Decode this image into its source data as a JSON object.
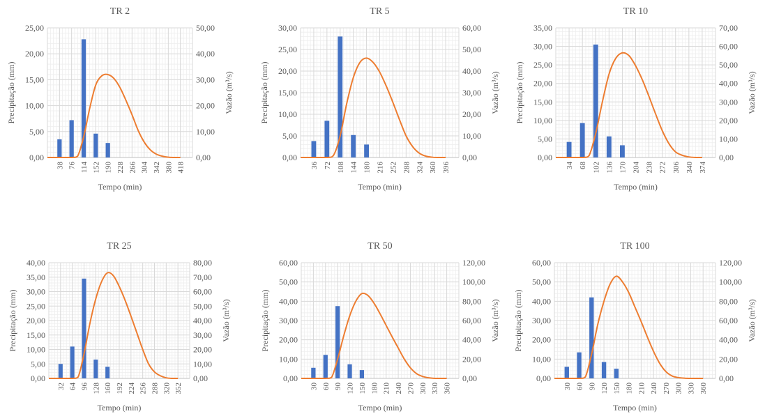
{
  "chart_data": [
    {
      "type": "bar+line",
      "title": "TR 2",
      "xlabel": "Tempo (min)",
      "ylabel": "Precipitação (mm)",
      "y2label": "Vazão (m³/s)",
      "ylim": [
        0,
        25
      ],
      "y2lim": [
        0,
        50
      ],
      "yticks": [
        "0,00",
        "5,00",
        "10,00",
        "15,00",
        "20,00",
        "25,00"
      ],
      "y2ticks": [
        "0,00",
        "10,00",
        "20,00",
        "30,00",
        "40,00",
        "50,00"
      ],
      "xticks": [
        "38",
        "76",
        "114",
        "152",
        "190",
        "228",
        "266",
        "304",
        "342",
        "380",
        "418"
      ],
      "bars": {
        "x": [
          38,
          76,
          114,
          152,
          190
        ],
        "values": [
          3.5,
          7.2,
          22.8,
          4.6,
          2.8
        ],
        "color": "#4472C4"
      },
      "line": {
        "x": [
          0,
          76,
          95,
          114,
          133,
          152,
          171,
          190,
          209,
          228,
          247,
          266,
          285,
          304,
          323,
          342,
          361,
          380,
          399,
          418
        ],
        "values": [
          0,
          0,
          0.5,
          8,
          19,
          28,
          31.5,
          32,
          30.5,
          27,
          22,
          16.5,
          10.5,
          6,
          3,
          1.3,
          0.5,
          0.1,
          0,
          0
        ],
        "color": "#ED7D31"
      }
    },
    {
      "type": "bar+line",
      "title": "TR 5",
      "xlabel": "Tempo (min)",
      "ylabel": "Precipitação (mm)",
      "y2label": "Vazão (m³/s)",
      "ylim": [
        0,
        30
      ],
      "y2lim": [
        0,
        60
      ],
      "yticks": [
        "0,00",
        "5,00",
        "10,00",
        "15,00",
        "20,00",
        "25,00",
        "30,00"
      ],
      "y2ticks": [
        "0,00",
        "10,00",
        "20,00",
        "30,00",
        "40,00",
        "50,00",
        "60,00"
      ],
      "xticks": [
        "36",
        "72",
        "108",
        "144",
        "180",
        "216",
        "252",
        "288",
        "324",
        "360",
        "396"
      ],
      "bars": {
        "x": [
          36,
          72,
          108,
          144,
          180
        ],
        "values": [
          3.8,
          8.5,
          28.0,
          5.2,
          3.0
        ],
        "color": "#4472C4"
      },
      "line": {
        "x": [
          0,
          72,
          90,
          108,
          126,
          144,
          162,
          180,
          198,
          216,
          234,
          252,
          270,
          288,
          306,
          324,
          342,
          360,
          378,
          396
        ],
        "values": [
          0,
          0,
          1,
          10,
          25,
          37,
          44,
          46,
          44,
          39.5,
          33,
          25.5,
          17.5,
          10,
          5,
          2,
          0.6,
          0.1,
          0,
          0
        ],
        "color": "#ED7D31"
      }
    },
    {
      "type": "bar+line",
      "title": "TR 10",
      "xlabel": "Tempo (min)",
      "ylabel": "Precipitação (mm)",
      "y2label": "Vazão (m³/s)",
      "ylim": [
        0,
        35
      ],
      "y2lim": [
        0,
        70
      ],
      "yticks": [
        "0,00",
        "5,00",
        "10,00",
        "15,00",
        "20,00",
        "25,00",
        "30,00",
        "35,00"
      ],
      "y2ticks": [
        "0,00",
        "10,00",
        "20,00",
        "30,00",
        "40,00",
        "50,00",
        "60,00",
        "70,00"
      ],
      "xticks": [
        "34",
        "68",
        "102",
        "136",
        "170",
        "204",
        "238",
        "272",
        "306",
        "340",
        "374"
      ],
      "bars": {
        "x": [
          34,
          68,
          102,
          136,
          170
        ],
        "values": [
          4.2,
          9.3,
          30.5,
          5.7,
          3.3
        ],
        "color": "#4472C4"
      },
      "line": {
        "x": [
          0,
          68,
          85,
          102,
          119,
          136,
          153,
          170,
          187,
          204,
          221,
          238,
          255,
          272,
          289,
          306,
          323,
          340,
          357,
          374
        ],
        "values": [
          0,
          0,
          1,
          13,
          30,
          45,
          53.5,
          56.5,
          55,
          49.5,
          42,
          33,
          23.5,
          14.5,
          7.5,
          3,
          1.2,
          0.3,
          0,
          0
        ],
        "color": "#ED7D31"
      }
    },
    {
      "type": "bar+line",
      "title": "TR 25",
      "xlabel": "Tempo (min)",
      "ylabel": "Precipitação (mm)",
      "y2label": "Vazão (m³/s)",
      "ylim": [
        0,
        40
      ],
      "y2lim": [
        0,
        80
      ],
      "yticks": [
        "0,00",
        "5,00",
        "10,00",
        "15,00",
        "20,00",
        "25,00",
        "30,00",
        "35,00",
        "40,00"
      ],
      "y2ticks": [
        "0,00",
        "10,00",
        "20,00",
        "30,00",
        "40,00",
        "50,00",
        "60,00",
        "70,00",
        "80,00"
      ],
      "xticks": [
        "32",
        "64",
        "96",
        "128",
        "160",
        "192",
        "224",
        "256",
        "288",
        "320",
        "352"
      ],
      "bars": {
        "x": [
          32,
          64,
          96,
          128,
          160
        ],
        "values": [
          5.0,
          11.0,
          34.5,
          6.5,
          4.0
        ],
        "color": "#4472C4"
      },
      "line": {
        "x": [
          0,
          64,
          80,
          96,
          112,
          128,
          144,
          160,
          176,
          192,
          208,
          224,
          240,
          256,
          272,
          288,
          304,
          320,
          336,
          352
        ],
        "values": [
          0,
          0,
          1,
          17,
          38,
          55,
          67,
          73,
          71,
          63.5,
          54,
          43,
          31.5,
          20,
          10,
          4.5,
          1.8,
          0.4,
          0,
          0
        ],
        "color": "#ED7D31"
      }
    },
    {
      "type": "bar+line",
      "title": "TR 50",
      "xlabel": "Tempo (min)",
      "ylabel": "Precipitação (mm)",
      "y2label": "Vazão (m³/s)",
      "ylim": [
        0,
        60
      ],
      "y2lim": [
        0,
        120
      ],
      "yticks": [
        "0,00",
        "10,00",
        "20,00",
        "30,00",
        "40,00",
        "50,00",
        "60,00"
      ],
      "y2ticks": [
        "0,00",
        "20,00",
        "40,00",
        "60,00",
        "80,00",
        "100,00",
        "120,00"
      ],
      "xticks": [
        "30",
        "60",
        "90",
        "120",
        "150",
        "180",
        "210",
        "240",
        "270",
        "300",
        "330",
        "360"
      ],
      "bars": {
        "x": [
          30,
          60,
          90,
          120,
          150
        ],
        "values": [
          5.5,
          12.2,
          37.5,
          7.3,
          4.3
        ],
        "color": "#4472C4"
      },
      "line": {
        "x": [
          0,
          60,
          75,
          90,
          105,
          120,
          135,
          150,
          165,
          180,
          195,
          210,
          225,
          240,
          255,
          270,
          285,
          300,
          315,
          330,
          345,
          360
        ],
        "values": [
          0,
          0,
          1,
          20,
          44,
          65,
          80,
          88,
          86,
          78,
          67,
          55,
          43,
          31.5,
          20,
          11,
          5,
          2,
          0.6,
          0,
          0,
          0
        ],
        "color": "#ED7D31"
      }
    },
    {
      "type": "bar+line",
      "title": "TR 100",
      "xlabel": "Tempo (min)",
      "ylabel": "Precipitação (mm)",
      "y2label": "Vazão (m³/s)",
      "ylim": [
        0,
        60
      ],
      "y2lim": [
        0,
        120
      ],
      "yticks": [
        "0,00",
        "10,00",
        "20,00",
        "30,00",
        "40,00",
        "50,00",
        "60,00"
      ],
      "y2ticks": [
        "0,00",
        "20,00",
        "40,00",
        "60,00",
        "80,00",
        "100,00",
        "120,00"
      ],
      "xticks": [
        "30",
        "60",
        "90",
        "120",
        "150",
        "180",
        "210",
        "240",
        "270",
        "300",
        "330",
        "360"
      ],
      "bars": {
        "x": [
          30,
          60,
          90,
          120,
          150
        ],
        "values": [
          6.0,
          13.5,
          42.0,
          8.5,
          5.0
        ],
        "color": "#4472C4"
      },
      "line": {
        "x": [
          0,
          60,
          75,
          90,
          105,
          120,
          135,
          150,
          165,
          180,
          195,
          210,
          225,
          240,
          255,
          270,
          285,
          300,
          315,
          330,
          345,
          360
        ],
        "values": [
          0,
          0,
          1.5,
          25,
          56,
          80,
          98,
          106,
          100,
          89,
          74,
          59,
          43,
          28,
          15.5,
          7,
          2.5,
          0.8,
          0.2,
          0,
          0,
          0
        ],
        "color": "#ED7D31"
      }
    }
  ]
}
